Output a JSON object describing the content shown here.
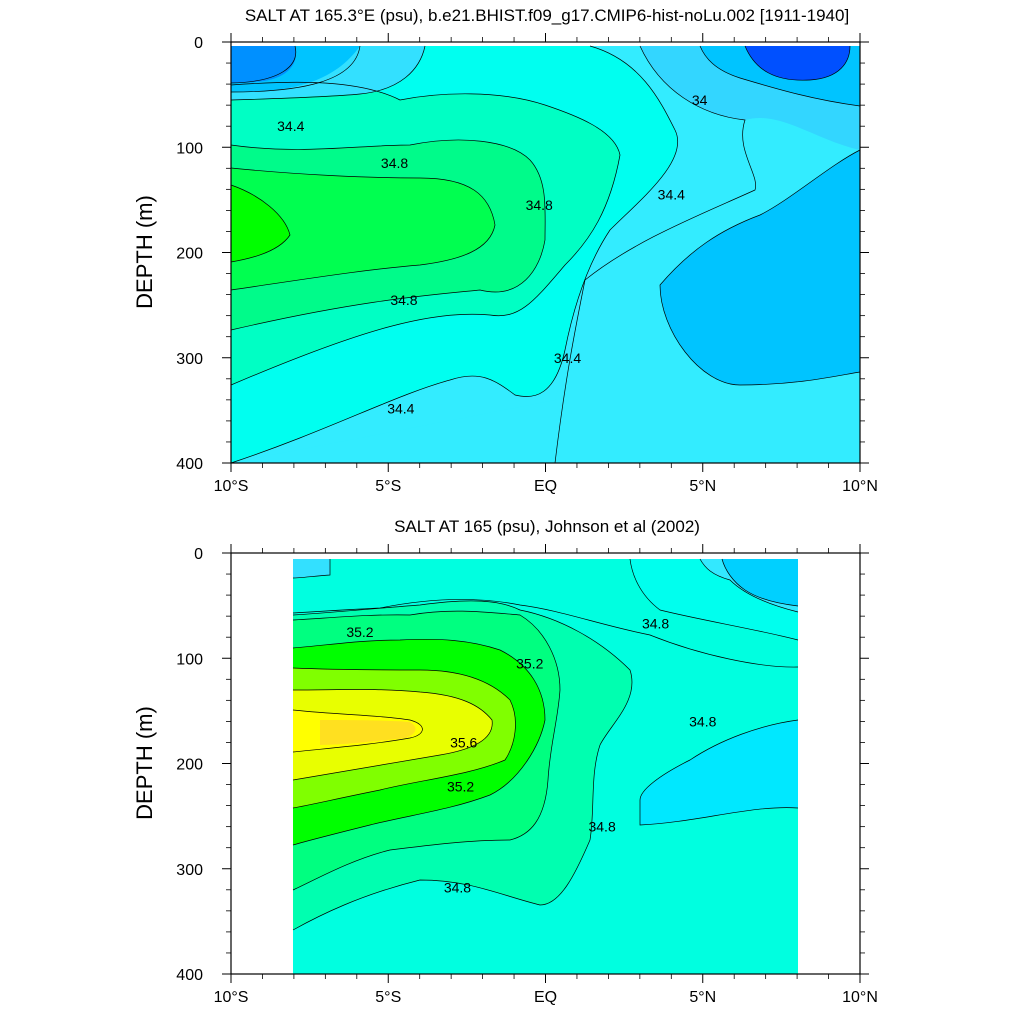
{
  "chart_data": [
    {
      "type": "contour",
      "title": "SALT AT 165.3°E (psu), b.e21.BHIST.f09_g17.CMIP6-hist-noLu.002 [1911-1940]",
      "xlabel": "",
      "ylabel": "DEPTH (m)",
      "xlim": [
        -10,
        10
      ],
      "ylim": [
        400,
        0
      ],
      "x_ticks": [
        -10,
        -5,
        0,
        5,
        10
      ],
      "x_tick_labels": [
        "10°S",
        "5°S",
        "EQ",
        "5°N",
        "10°N"
      ],
      "y_ticks": [
        0,
        100,
        200,
        300,
        400
      ],
      "y_tick_labels": [
        "0",
        "100",
        "200",
        "300",
        "400"
      ],
      "data_extent": {
        "lat": [
          -10,
          10
        ],
        "depth": [
          5,
          400
        ]
      },
      "contour_levels": [
        33.8,
        34.0,
        34.2,
        34.4,
        34.6,
        34.8,
        35.0,
        35.2
      ],
      "contour_labels": [
        {
          "text": "34.4",
          "lat": -8.1,
          "depth": 80
        },
        {
          "text": "34.8",
          "lat": -4.8,
          "depth": 115
        },
        {
          "text": "34.8",
          "lat": -0.2,
          "depth": 155
        },
        {
          "text": "34.8",
          "lat": -4.5,
          "depth": 245
        },
        {
          "text": "34.4",
          "lat": -4.6,
          "depth": 348
        },
        {
          "text": "34.4",
          "lat": 0.7,
          "depth": 300
        },
        {
          "text": "34.4",
          "lat": 4.0,
          "depth": 145
        },
        {
          "text": "34",
          "lat": 4.9,
          "depth": 55
        }
      ]
    },
    {
      "type": "contour",
      "title": "SALT AT 165 (psu), Johnson et al (2002)",
      "xlabel": "",
      "ylabel": "DEPTH (m)",
      "xlim": [
        -10,
        10
      ],
      "ylim": [
        400,
        0
      ],
      "x_ticks": [
        -10,
        -5,
        0,
        5,
        10
      ],
      "x_tick_labels": [
        "10°S",
        "5°S",
        "EQ",
        "5°N",
        "10°N"
      ],
      "y_ticks": [
        0,
        100,
        200,
        300,
        400
      ],
      "y_tick_labels": [
        "0",
        "100",
        "200",
        "300",
        "400"
      ],
      "data_extent": {
        "lat": [
          -8,
          8
        ],
        "depth": [
          5,
          400
        ]
      },
      "contour_levels": [
        34.2,
        34.4,
        34.6,
        34.8,
        35.0,
        35.2,
        35.4,
        35.6,
        35.8
      ],
      "contour_labels": [
        {
          "text": "35.2",
          "lat": -5.9,
          "depth": 75
        },
        {
          "text": "35.2",
          "lat": -0.5,
          "depth": 105
        },
        {
          "text": "35.6",
          "lat": -2.6,
          "depth": 180
        },
        {
          "text": "35.2",
          "lat": -2.7,
          "depth": 222
        },
        {
          "text": "34.8",
          "lat": 1.8,
          "depth": 260
        },
        {
          "text": "34.8",
          "lat": -2.8,
          "depth": 318
        },
        {
          "text": "34.8",
          "lat": 3.5,
          "depth": 67
        },
        {
          "text": "34.8",
          "lat": 5.0,
          "depth": 160
        }
      ]
    }
  ]
}
